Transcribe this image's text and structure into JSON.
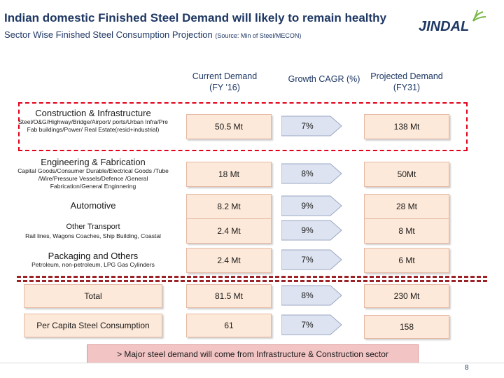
{
  "header": {
    "title": "Indian domestic Finished  Steel Demand will likely to remain healthy",
    "subtitle": "Sector Wise Finished Steel Consumption Projection",
    "source": "(Source: Min of Steel/MECON)",
    "logo_text": "JINDAL"
  },
  "columns": {
    "current_line1": "Current Demand",
    "current_line2": "(FY '16)",
    "growth": "Growth CAGR (%)",
    "projected_line1": "Projected Demand",
    "projected_line2": "(FY31)"
  },
  "sectors": [
    {
      "name": "Construction & Infrastructure",
      "detail": "Steel/O&G/Highway/Bridge/Airport/ ports/Urban Infra/Pre Fab buildings/Power/ Real Estate(resid+industrial)",
      "current": "50.5 Mt",
      "cagr": "7%",
      "projected": "138  Mt"
    },
    {
      "name": "Engineering & Fabrication",
      "detail": "Capital Goods/Consumer Durable/Electrical Goods /Tube /Wire/Pressure Vessels/Defence /General Fabrication/General Enginnering",
      "current": "18 Mt",
      "cagr": "8%",
      "projected": "50Mt"
    },
    {
      "name": "Automotive",
      "detail": "",
      "current": "8.2 Mt",
      "cagr": "9%",
      "projected": "28 Mt"
    },
    {
      "name": "Other Transport",
      "detail": "Rail lines, Wagons Coaches, Ship Building, Coastal",
      "current": "2.4 Mt",
      "cagr": "9%",
      "projected": "8 Mt"
    },
    {
      "name": "Packaging and Others",
      "detail": "Petroleum, non-petroleum, LPG Gas Cylinders",
      "current": "2.4 Mt",
      "cagr": "7%",
      "projected": "6 Mt"
    }
  ],
  "totals": [
    {
      "name": "Total",
      "current": "81.5 Mt",
      "cagr": "8%",
      "projected": "230 Mt"
    },
    {
      "name": "Per Capita Steel Consumption",
      "current": "61",
      "cagr": "7%",
      "projected": "158"
    }
  ],
  "note": "> Major steel demand will come from  Infrastructure & Construction sector",
  "page_number": "8",
  "colors": {
    "title": "#1f3864",
    "box": "#fde9d9",
    "arrow": "#dde3f0",
    "dash": "#9b2226",
    "highlight": "#e2001a",
    "logo": "#1f3864",
    "logo_accent": "#7ab648"
  }
}
